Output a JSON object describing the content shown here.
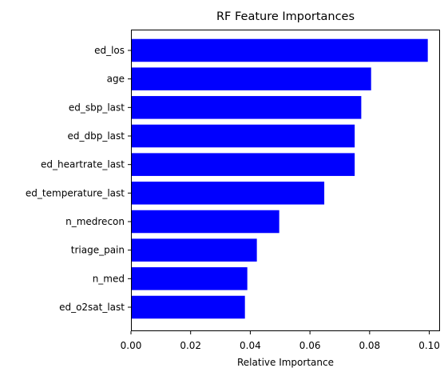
{
  "chart_data": {
    "type": "bar",
    "orientation": "horizontal",
    "title": "RF Feature Importances",
    "xlabel": "Relative Importance",
    "ylabel": "",
    "categories": [
      "ed_los",
      "age",
      "ed_sbp_last",
      "ed_dbp_last",
      "ed_heartrate_last",
      "ed_temperature_last",
      "n_medrecon",
      "triage_pain",
      "n_med",
      "ed_o2sat_last"
    ],
    "values": [
      0.0995,
      0.0805,
      0.0772,
      0.075,
      0.075,
      0.0648,
      0.0497,
      0.0422,
      0.039,
      0.0382
    ],
    "xlim": [
      0.0,
      0.1036
    ],
    "xticks": [
      0.0,
      0.02,
      0.04,
      0.06,
      0.08,
      0.1
    ],
    "xtick_labels": [
      "0.00",
      "0.02",
      "0.04",
      "0.06",
      "0.08",
      "0.10"
    ],
    "bar_color": "#0000ff",
    "grid": false,
    "legend": "none"
  }
}
